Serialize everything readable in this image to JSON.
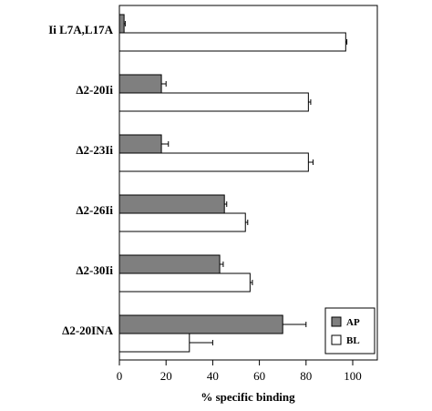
{
  "chart_data": {
    "type": "bar",
    "orientation": "horizontal",
    "categories": [
      "Ii L7A,L17A",
      "Δ2-20Ii",
      "Δ2-23Ii",
      "Δ2-26Ii",
      "Δ2-30Ii",
      "Δ2-20INA"
    ],
    "series": [
      {
        "name": "AP",
        "color": "#7f7f7f",
        "values": [
          2,
          18,
          18,
          45,
          43,
          70
        ],
        "errors": [
          0.5,
          2,
          3,
          1,
          1.5,
          10
        ]
      },
      {
        "name": "BL",
        "color": "#ffffff",
        "values": [
          97,
          81,
          81,
          54,
          56,
          30
        ],
        "errors": [
          0.5,
          1,
          2,
          1,
          1,
          10
        ]
      }
    ],
    "xlabel": "% specific binding",
    "xlim": [
      0,
      100
    ],
    "xticks": [
      0,
      20,
      40,
      60,
      80,
      100
    ],
    "legend_position": "bottom-right",
    "grid": false
  }
}
